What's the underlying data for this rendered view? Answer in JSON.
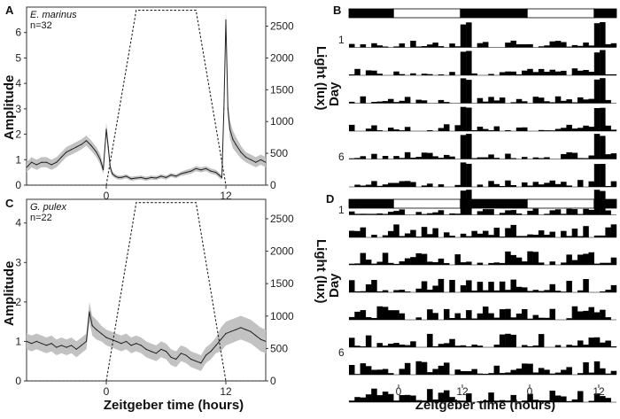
{
  "chart_data": [
    {
      "panel": "A",
      "type": "line",
      "species": "E. marinus",
      "n_label": "n=32",
      "xlabel": "",
      "ylabel": "Amplitude",
      "y2label": "Light (lux)",
      "xlim": [
        -8,
        16
      ],
      "ylim": [
        0,
        7
      ],
      "y2lim": [
        0,
        2800
      ],
      "xticks": [
        0,
        12
      ],
      "yticks": [
        0,
        1,
        2,
        3,
        4,
        5,
        6
      ],
      "y2ticks": [
        0,
        500,
        1000,
        1500,
        2000,
        2500
      ],
      "series": [
        {
          "role": "amplitude",
          "x": [
            -8,
            -7.5,
            -7,
            -6.5,
            -6,
            -5.5,
            -5,
            -4.5,
            -4,
            -3.5,
            -3,
            -2.5,
            -2,
            -1.5,
            -1,
            -0.6,
            -0.3,
            0,
            0.2,
            0.4,
            0.6,
            0.9,
            1.2,
            1.5,
            2,
            2.5,
            3,
            3.5,
            4,
            4.5,
            5,
            5.5,
            6,
            6.5,
            7,
            7.5,
            8,
            8.5,
            9,
            9.5,
            10,
            10.5,
            11,
            11.3,
            11.6,
            11.8,
            12,
            12.2,
            12.4,
            12.7,
            13,
            13.5,
            14,
            14.5,
            15,
            15.5,
            16
          ],
          "y": [
            0.7,
            0.9,
            0.8,
            0.9,
            0.9,
            0.8,
            0.9,
            1.1,
            1.3,
            1.4,
            1.5,
            1.6,
            1.75,
            1.55,
            1.3,
            1.0,
            0.6,
            2.2,
            1.5,
            0.7,
            0.45,
            0.35,
            0.3,
            0.3,
            0.35,
            0.25,
            0.28,
            0.3,
            0.25,
            0.3,
            0.28,
            0.35,
            0.3,
            0.4,
            0.35,
            0.45,
            0.5,
            0.55,
            0.65,
            0.6,
            0.65,
            0.55,
            0.5,
            0.4,
            0.3,
            3.0,
            6.5,
            3.0,
            2.2,
            1.8,
            1.6,
            1.3,
            1.1,
            1.0,
            0.9,
            1.0,
            0.9
          ],
          "band": [
            0.2,
            0.2,
            0.2,
            0.2,
            0.2,
            0.2,
            0.2,
            0.2,
            0.2,
            0.2,
            0.2,
            0.2,
            0.2,
            0.2,
            0.2,
            0.2,
            0.15,
            0.25,
            0.25,
            0.15,
            0.1,
            0.08,
            0.08,
            0.08,
            0.08,
            0.08,
            0.08,
            0.08,
            0.08,
            0.08,
            0.08,
            0.08,
            0.08,
            0.08,
            0.08,
            0.08,
            0.1,
            0.1,
            0.1,
            0.1,
            0.1,
            0.1,
            0.1,
            0.1,
            0.1,
            0.3,
            0.4,
            0.3,
            0.35,
            0.35,
            0.3,
            0.25,
            0.2,
            0.2,
            0.2,
            0.2,
            0.2
          ]
        },
        {
          "role": "light",
          "x": [
            -8,
            0,
            3,
            9,
            12,
            16
          ],
          "y": [
            0,
            0,
            2750,
            2750,
            0,
            0
          ]
        }
      ]
    },
    {
      "panel": "C",
      "type": "line",
      "species": "G. pulex",
      "n_label": "n=22",
      "xlabel": "Zeitgeber time (hours)",
      "ylabel": "Amplitude",
      "y2label": "Light (lux)",
      "xlim": [
        -8,
        16
      ],
      "ylim": [
        0,
        4.6
      ],
      "y2lim": [
        0,
        2800
      ],
      "xticks": [
        0,
        12
      ],
      "yticks": [
        0,
        1,
        2,
        3,
        4
      ],
      "y2ticks": [
        0,
        500,
        1000,
        1500,
        2000,
        2500
      ],
      "series": [
        {
          "role": "amplitude",
          "x": [
            -8,
            -7.5,
            -7,
            -6.5,
            -6,
            -5.5,
            -5,
            -4.5,
            -4,
            -3.5,
            -3,
            -2.5,
            -2,
            -1.7,
            -1.4,
            -1,
            -0.5,
            0,
            0.5,
            1,
            1.5,
            2,
            2.5,
            3,
            3.5,
            4,
            4.5,
            5,
            5.5,
            6,
            6.5,
            7,
            7.5,
            8,
            8.5,
            9,
            9.5,
            10,
            10.5,
            11,
            11.5,
            12,
            12.5,
            13,
            13.5,
            14,
            14.5,
            15,
            15.5,
            16
          ],
          "y": [
            1.0,
            0.95,
            1.0,
            0.95,
            0.9,
            0.95,
            0.85,
            0.9,
            0.85,
            0.9,
            0.8,
            0.9,
            1.0,
            1.75,
            1.4,
            1.3,
            1.2,
            1.1,
            1.05,
            1.0,
            0.95,
            1.0,
            0.9,
            0.95,
            0.9,
            0.8,
            0.75,
            0.7,
            0.8,
            0.75,
            0.6,
            0.55,
            0.7,
            0.65,
            0.55,
            0.5,
            0.45,
            0.65,
            0.75,
            0.9,
            1.05,
            1.2,
            1.25,
            1.3,
            1.35,
            1.3,
            1.25,
            1.15,
            1.05,
            1.0
          ],
          "band": [
            0.2,
            0.2,
            0.2,
            0.2,
            0.2,
            0.2,
            0.2,
            0.2,
            0.2,
            0.2,
            0.2,
            0.2,
            0.2,
            0.25,
            0.25,
            0.25,
            0.2,
            0.2,
            0.2,
            0.2,
            0.2,
            0.2,
            0.2,
            0.2,
            0.2,
            0.2,
            0.2,
            0.2,
            0.2,
            0.2,
            0.2,
            0.2,
            0.2,
            0.2,
            0.2,
            0.2,
            0.2,
            0.2,
            0.2,
            0.2,
            0.3,
            0.3,
            0.3,
            0.3,
            0.3,
            0.3,
            0.3,
            0.3,
            0.3,
            0.3
          ]
        },
        {
          "role": "light",
          "x": [
            -8,
            0,
            3,
            9,
            12,
            16
          ],
          "y": [
            0,
            0,
            2750,
            2750,
            0,
            0
          ]
        }
      ]
    },
    {
      "panel": "B",
      "type": "bar",
      "ylabel": "Day",
      "day_labels": [
        "1",
        "6"
      ],
      "days": 7,
      "bins_per_day": 48,
      "light_dark_bar": [
        "dark",
        "light",
        "dark",
        "light",
        "dark"
      ]
    },
    {
      "panel": "D",
      "type": "bar",
      "xlabel": "Zeitgeber time (hours)",
      "ylabel": "Day",
      "xticks": [
        "0",
        "12",
        "0",
        "12"
      ],
      "day_labels": [
        "1",
        "6"
      ],
      "days": 7,
      "bins_per_day": 48,
      "light_dark_bar": [
        "dark",
        "light",
        "dark",
        "light",
        "dark"
      ]
    }
  ],
  "colors": {
    "line": "#222222",
    "band": "#c2c2c2",
    "bar": "#000000",
    "light": "#ffffff"
  }
}
